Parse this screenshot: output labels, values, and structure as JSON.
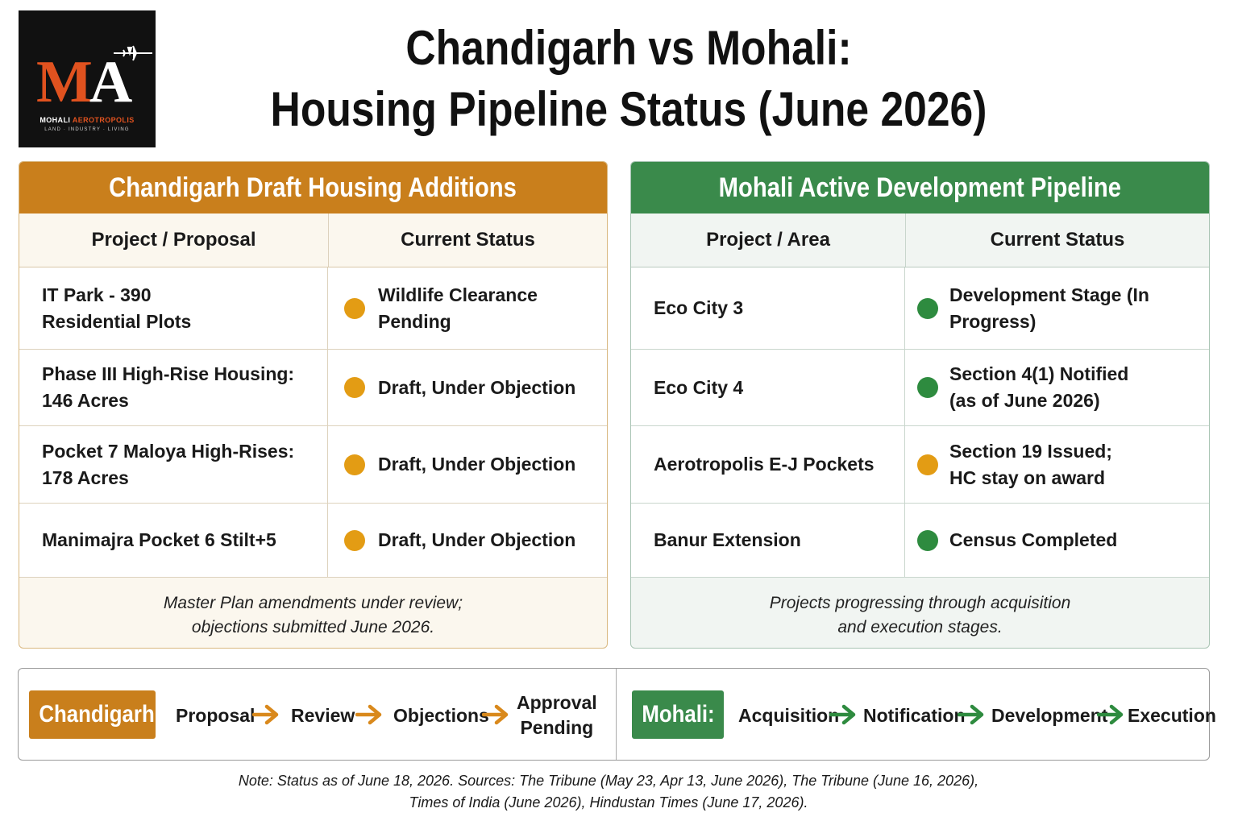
{
  "logo": {
    "mark_m": "M",
    "mark_a": "A",
    "name_part1": "MOHALI ",
    "name_part2": "AEROTROPOLIS",
    "tagline": "LAND · INDUSTRY · LIVING",
    "icon": "airplane-icon"
  },
  "title": {
    "line1": "Chandigarh vs Mohali:",
    "line2": "Housing Pipeline Status (June 2026)"
  },
  "chandigarh": {
    "header": "Chandigarh Draft Housing Additions",
    "col1": "Project / Proposal",
    "col2": "Current Status",
    "rows": [
      {
        "project": "IT Park - 390\nResidential Plots",
        "status": "Wildlife Clearance Pending",
        "color": "#e39c14"
      },
      {
        "project": "Phase III High-Rise Housing:\n146 Acres",
        "status": "Draft, Under Objection",
        "color": "#e39c14"
      },
      {
        "project": "Pocket 7 Maloya High-Rises:\n178 Acres",
        "status": "Draft, Under Objection",
        "color": "#e39c14"
      },
      {
        "project": "Manimajra Pocket 6 Stilt+5",
        "status": "Draft, Under Objection",
        "color": "#e39c14"
      }
    ],
    "footer": "Master Plan amendments under review;\nobjections submitted June 2026."
  },
  "mohali": {
    "header": "Mohali Active Development Pipeline",
    "col1": "Project / Area",
    "col2": "Current Status",
    "rows": [
      {
        "project": "Eco City 3",
        "status": "Development Stage (In Progress)",
        "color": "#2e8b3f"
      },
      {
        "project": "Eco City 4",
        "status": "Section 4(1) Notified\n(as of June 2026)",
        "color": "#2e8b3f"
      },
      {
        "project": "Aerotropolis E-J Pockets",
        "status": "Section 19 Issued;\nHC stay on award",
        "color": "#e39c14"
      },
      {
        "project": "Banur Extension",
        "status": "Census Completed",
        "color": "#2e8b3f"
      }
    ],
    "footer": "Projects progressing through acquisition\nand execution stages."
  },
  "process": {
    "chandigarh_label": "Chandigarh:",
    "chandigarh_steps": [
      "Proposal",
      "Review",
      "Objections",
      "Approval\nPending"
    ],
    "chandigarh_arrow_color": "#d9891c",
    "mohali_label": "Mohali:",
    "mohali_steps": [
      "Acquisition",
      "Notification",
      "Development",
      "Execution"
    ],
    "mohali_arrow_color": "#2e8b3f"
  },
  "note": "Note: Status as of June 18, 2026. Sources: The Tribune (May 23, Apr 13, June 2026), The Tribune (June 16, 2026),\nTimes of India (June 2026), Hindustan Times (June 17, 2026)."
}
